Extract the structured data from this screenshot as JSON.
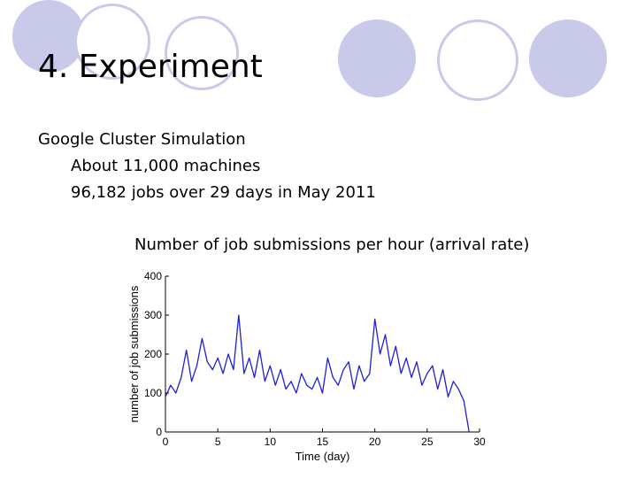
{
  "slide": {
    "title": "4. Experiment",
    "lines": [
      "Google Cluster Simulation",
      "About 11,000 machines",
      "96,182 jobs over 29 days in May 2011"
    ],
    "chart_caption": "Number of job submissions per hour (arrival rate)"
  },
  "theme": {
    "circle_color": "#c9c9ea",
    "line_color": "#1f1fd8"
  },
  "chart_data": {
    "type": "line",
    "title": "",
    "xlabel": "Time (day)",
    "ylabel": "number of job submissions",
    "xlim": [
      0,
      30
    ],
    "ylim": [
      0,
      400
    ],
    "xticks": [
      0,
      5,
      10,
      15,
      20,
      25,
      30
    ],
    "yticks": [
      0,
      100,
      200,
      300,
      400
    ],
    "grid": false,
    "series": [
      {
        "x": [
          0,
          0.5,
          1,
          1.5,
          2,
          2.5,
          3,
          3.5,
          4,
          4.5,
          5,
          5.5,
          6,
          6.5,
          7,
          7.5,
          8,
          8.5,
          9,
          9.5,
          10,
          10.5,
          11,
          11.5,
          12,
          12.5,
          13,
          13.5,
          14,
          14.5,
          15,
          15.5,
          16,
          16.5,
          17,
          17.5,
          18,
          18.5,
          19,
          19.5,
          20,
          20.5,
          21,
          21.5,
          22,
          22.5,
          23,
          23.5,
          24,
          24.5,
          25,
          25.5,
          26,
          26.5,
          27,
          27.5,
          28,
          28.5,
          29
        ],
        "y": [
          90,
          120,
          100,
          140,
          210,
          130,
          170,
          240,
          180,
          160,
          190,
          150,
          200,
          160,
          300,
          150,
          190,
          140,
          210,
          130,
          170,
          120,
          160,
          110,
          130,
          100,
          150,
          120,
          110,
          140,
          100,
          190,
          140,
          120,
          160,
          180,
          110,
          170,
          130,
          150,
          290,
          200,
          250,
          170,
          220,
          150,
          190,
          140,
          180,
          120,
          150,
          170,
          110,
          160,
          90,
          130,
          110,
          80,
          0
        ]
      }
    ]
  }
}
